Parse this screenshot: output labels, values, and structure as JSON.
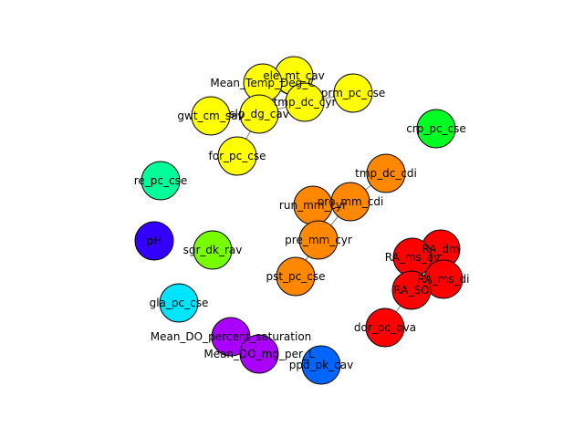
{
  "graph": {
    "nodes": [
      {
        "id": "ele_mt_cav",
        "label": "ele_mt_cav",
        "color": "#ffff00"
      },
      {
        "id": "Mean_Temp_Deg_C",
        "label": "Mean_Temp_Deg_C",
        "color": "#ffff00"
      },
      {
        "id": "slp_dg_cav",
        "label": "slp_dg_cav",
        "color": "#ffff00"
      },
      {
        "id": "gwt_cm_sav",
        "label": "gwt_cm_sav",
        "color": "#ffff00"
      },
      {
        "id": "tmp_dc_cyr",
        "label": "tmp_dc_cyr",
        "color": "#ffff00"
      },
      {
        "id": "prm_pc_cse",
        "label": "prm_pc_cse",
        "color": "#ffff00"
      },
      {
        "id": "for_pc_cse",
        "label": "for_pc_cse",
        "color": "#ffff00"
      },
      {
        "id": "crp_pc_cse",
        "label": "crp_pc_cse",
        "color": "#00ff22"
      },
      {
        "id": "re_pc_cse",
        "label": "re_pc_cse",
        "color": "#00ff99"
      },
      {
        "id": "tmp_dc_cdi",
        "label": "tmp_dc_cdi",
        "color": "#ff8800"
      },
      {
        "id": "pre_mm_cdi",
        "label": "pre_mm_cdi",
        "color": "#ff8800"
      },
      {
        "id": "run_mm_cyr",
        "label": "run_mm_cyr",
        "color": "#ff8800"
      },
      {
        "id": "pre_mm_cyr",
        "label": "pre_mm_cyr",
        "color": "#ff8800"
      },
      {
        "id": "pst_pc_cse",
        "label": "pst_pc_cse",
        "color": "#ff8800"
      },
      {
        "id": "pH",
        "label": "pH",
        "color": "#3300ff"
      },
      {
        "id": "sgr_dk_rav",
        "label": "sgr_dk_rav",
        "color": "#77ff00"
      },
      {
        "id": "RA_dm",
        "label": "RA_dm",
        "color": "#ff0000"
      },
      {
        "id": "RA_ms_av",
        "label": "RA_ms_av",
        "color": "#ff0000"
      },
      {
        "id": "RA_ms_di",
        "label": "RA_ms_di",
        "color": "#ff0000"
      },
      {
        "id": "RA_SO",
        "label": "RA_SO",
        "color": "#ff0000"
      },
      {
        "id": "dor_pc_pva",
        "label": "dor_pc_pva",
        "color": "#ff0000"
      },
      {
        "id": "gla_pc_cse",
        "label": "gla_pc_cse",
        "color": "#00e5ff"
      },
      {
        "id": "Mean_DO_percent_saturation",
        "label": "Mean_DO_percent_saturation",
        "color": "#aa00ff"
      },
      {
        "id": "Mean_DO_mg_per_L",
        "label": "Mean_DO_mg_per_L",
        "color": "#aa00ff"
      },
      {
        "id": "ppd_pk_cav",
        "label": "ppd_pk_cav",
        "color": "#0066ff"
      }
    ],
    "edges": [
      [
        "ele_mt_cav",
        "Mean_Temp_Deg_C"
      ],
      [
        "ele_mt_cav",
        "tmp_dc_cyr"
      ],
      [
        "Mean_Temp_Deg_C",
        "slp_dg_cav"
      ],
      [
        "Mean_Temp_Deg_C",
        "tmp_dc_cyr"
      ],
      [
        "slp_dg_cav",
        "gwt_cm_sav"
      ],
      [
        "slp_dg_cav",
        "tmp_dc_cyr"
      ],
      [
        "slp_dg_cav",
        "for_pc_cse"
      ],
      [
        "tmp_dc_cyr",
        "prm_pc_cse"
      ],
      [
        "tmp_dc_cdi",
        "pre_mm_cdi"
      ],
      [
        "pre_mm_cdi",
        "run_mm_cyr"
      ],
      [
        "pre_mm_cdi",
        "pre_mm_cyr"
      ],
      [
        "run_mm_cyr",
        "pre_mm_cyr"
      ],
      [
        "pre_mm_cyr",
        "pst_pc_cse"
      ],
      [
        "RA_dm",
        "RA_ms_av"
      ],
      [
        "RA_dm",
        "RA_ms_di"
      ],
      [
        "RA_ms_av",
        "RA_ms_di"
      ],
      [
        "RA_ms_av",
        "RA_SO"
      ],
      [
        "RA_ms_di",
        "RA_SO"
      ],
      [
        "RA_SO",
        "dor_pc_pva"
      ],
      [
        "Mean_DO_percent_saturation",
        "Mean_DO_mg_per_L"
      ]
    ]
  }
}
